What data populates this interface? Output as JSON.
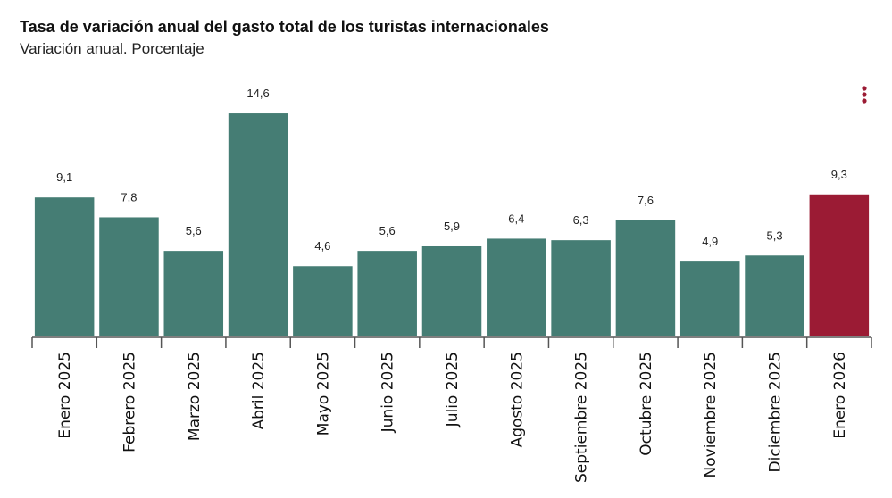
{
  "chart_data": {
    "type": "bar",
    "title": "Tasa de variación anual del gasto total de los turistas internacionales",
    "subtitle": "Variación anual. Porcentaje",
    "categories": [
      "Enero 2025",
      "Febrero 2025",
      "Marzo 2025",
      "Abril 2025",
      "Mayo 2025",
      "Junio 2025",
      "Julio 2025",
      "Agosto 2025",
      "Septiembre 2025",
      "Octubre 2025",
      "Noviembre 2025",
      "Diciembre 2025",
      "Enero 2026"
    ],
    "values": [
      9.1,
      7.8,
      5.6,
      14.6,
      4.6,
      5.6,
      5.9,
      6.4,
      6.3,
      7.6,
      4.9,
      5.3,
      9.3
    ],
    "value_labels": [
      "9,1",
      "7,8",
      "5,6",
      "14,6",
      "4,6",
      "5,6",
      "5,9",
      "6,4",
      "6,3",
      "7,6",
      "4,9",
      "5,3",
      "9,3"
    ],
    "colors": [
      "#457d74",
      "#457d74",
      "#457d74",
      "#457d74",
      "#457d74",
      "#457d74",
      "#457d74",
      "#457d74",
      "#457d74",
      "#457d74",
      "#457d74",
      "#457d74",
      "#9b1b34"
    ]
  }
}
